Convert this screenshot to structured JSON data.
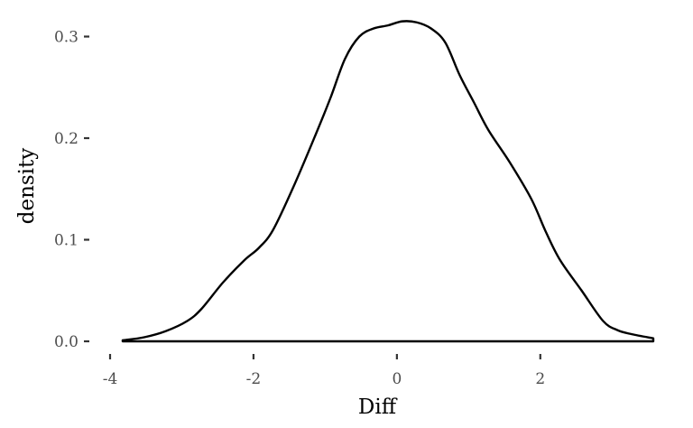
{
  "chart_data": {
    "type": "area",
    "title": "",
    "xlabel": "Diff",
    "ylabel": "density",
    "xlim": [
      -4,
      3.5
    ],
    "ylim": [
      0,
      0.32
    ],
    "x_ticks": [
      -4,
      -2,
      0,
      2
    ],
    "x_tick_labels": [
      "-4",
      "-2",
      "0",
      "2"
    ],
    "y_ticks": [
      0.0,
      0.1,
      0.2,
      0.3
    ],
    "y_tick_labels": [
      "0.0",
      "0.1",
      "0.2",
      "0.3"
    ],
    "grid": false,
    "line_color": "#000000",
    "fill_color": "#ffffff",
    "series": [
      {
        "x": [
          -3.9,
          -3.6,
          -3.3,
          -3.0,
          -2.8,
          -2.5,
          -2.2,
          -2.0,
          -1.8,
          -1.5,
          -1.2,
          -1.0,
          -0.8,
          -0.6,
          -0.4,
          -0.2,
          0.0,
          0.2,
          0.4,
          0.6,
          0.8,
          1.0,
          1.2,
          1.5,
          1.8,
          2.0,
          2.2,
          2.5,
          2.8,
          3.0,
          3.2,
          3.5
        ],
        "y": [
          0.001,
          0.004,
          0.01,
          0.02,
          0.032,
          0.058,
          0.08,
          0.092,
          0.11,
          0.155,
          0.205,
          0.24,
          0.278,
          0.3,
          0.308,
          0.311,
          0.315,
          0.314,
          0.308,
          0.294,
          0.262,
          0.235,
          0.208,
          0.176,
          0.14,
          0.108,
          0.08,
          0.05,
          0.02,
          0.011,
          0.007,
          0.003
        ]
      }
    ]
  }
}
